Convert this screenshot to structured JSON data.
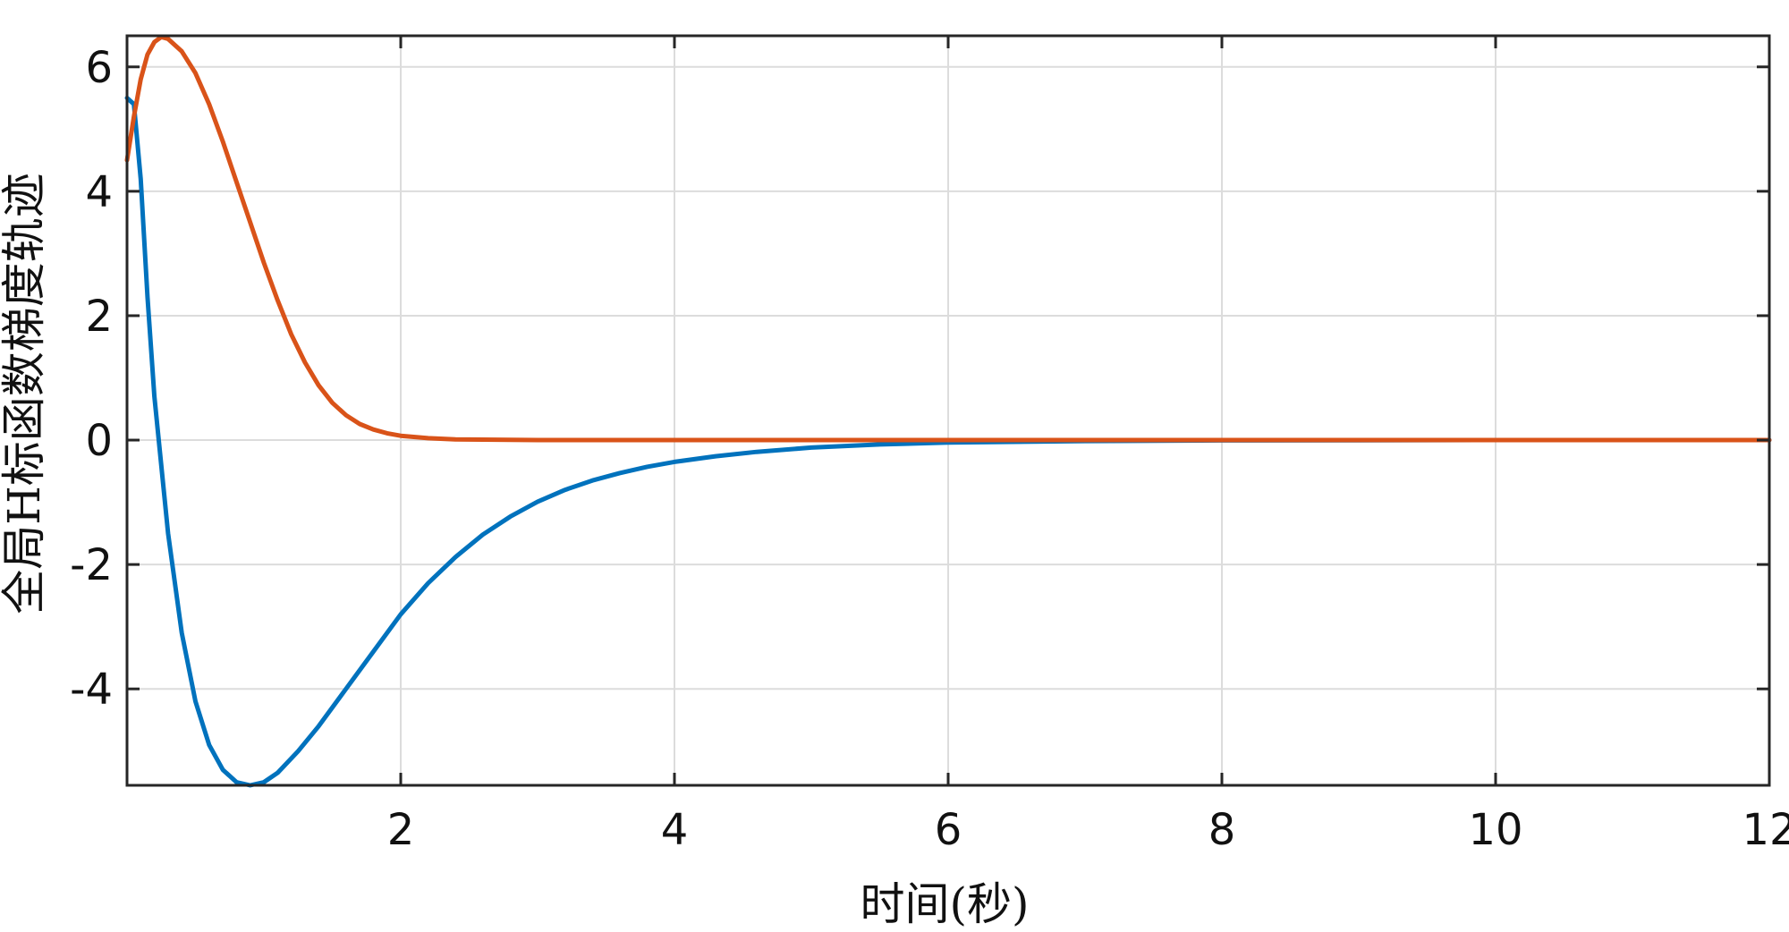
{
  "chart_data": {
    "type": "line",
    "title": "",
    "xlabel": "时间(秒)",
    "ylabel": "全局H标函数梯度轨迹",
    "xlim": [
      0,
      12
    ],
    "ylim": [
      -5.55,
      6.5
    ],
    "xticks": [
      2,
      4,
      6,
      8,
      10,
      12
    ],
    "yticks": [
      -4,
      -2,
      0,
      2,
      4,
      6
    ],
    "grid": true,
    "series": [
      {
        "color": "#0072bd",
        "points": [
          [
            0.0,
            5.5
          ],
          [
            0.05,
            5.4
          ],
          [
            0.1,
            4.2
          ],
          [
            0.15,
            2.3
          ],
          [
            0.2,
            0.7
          ],
          [
            0.3,
            -1.5
          ],
          [
            0.4,
            -3.1
          ],
          [
            0.5,
            -4.2
          ],
          [
            0.6,
            -4.9
          ],
          [
            0.7,
            -5.3
          ],
          [
            0.8,
            -5.5
          ],
          [
            0.9,
            -5.55
          ],
          [
            1.0,
            -5.5
          ],
          [
            1.1,
            -5.35
          ],
          [
            1.25,
            -5.0
          ],
          [
            1.4,
            -4.6
          ],
          [
            1.6,
            -4.0
          ],
          [
            1.8,
            -3.4
          ],
          [
            2.0,
            -2.8
          ],
          [
            2.2,
            -2.3
          ],
          [
            2.4,
            -1.88
          ],
          [
            2.6,
            -1.52
          ],
          [
            2.8,
            -1.23
          ],
          [
            3.0,
            -0.99
          ],
          [
            3.2,
            -0.8
          ],
          [
            3.4,
            -0.65
          ],
          [
            3.6,
            -0.53
          ],
          [
            3.8,
            -0.43
          ],
          [
            4.0,
            -0.35
          ],
          [
            4.3,
            -0.26
          ],
          [
            4.6,
            -0.19
          ],
          [
            5.0,
            -0.12
          ],
          [
            5.5,
            -0.07
          ],
          [
            6.0,
            -0.04
          ],
          [
            7.0,
            -0.015
          ],
          [
            8.0,
            -0.005
          ],
          [
            10.0,
            0.0
          ],
          [
            12.0,
            0.0
          ]
        ]
      },
      {
        "color": "#d95319",
        "points": [
          [
            0.0,
            4.5
          ],
          [
            0.05,
            5.2
          ],
          [
            0.1,
            5.8
          ],
          [
            0.15,
            6.2
          ],
          [
            0.2,
            6.4
          ],
          [
            0.25,
            6.48
          ],
          [
            0.3,
            6.45
          ],
          [
            0.4,
            6.25
          ],
          [
            0.5,
            5.9
          ],
          [
            0.6,
            5.4
          ],
          [
            0.7,
            4.8
          ],
          [
            0.8,
            4.15
          ],
          [
            0.9,
            3.5
          ],
          [
            1.0,
            2.85
          ],
          [
            1.1,
            2.25
          ],
          [
            1.2,
            1.7
          ],
          [
            1.3,
            1.25
          ],
          [
            1.4,
            0.88
          ],
          [
            1.5,
            0.6
          ],
          [
            1.6,
            0.4
          ],
          [
            1.7,
            0.26
          ],
          [
            1.8,
            0.17
          ],
          [
            1.9,
            0.11
          ],
          [
            2.0,
            0.07
          ],
          [
            2.2,
            0.03
          ],
          [
            2.4,
            0.01
          ],
          [
            3.0,
            0.0
          ],
          [
            12.0,
            0.0
          ]
        ]
      }
    ]
  }
}
